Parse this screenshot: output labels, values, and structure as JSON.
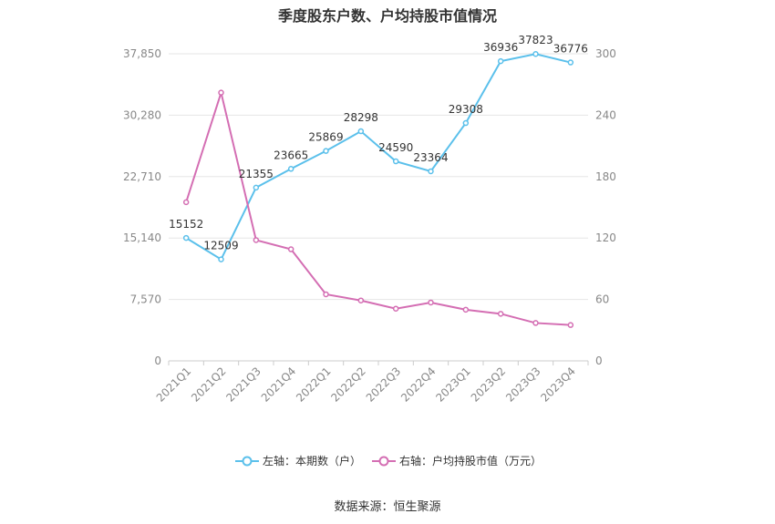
{
  "chart_data": {
    "type": "line",
    "title": "季度股东户数、户均持股市值情况",
    "categories": [
      "2021Q1",
      "2021Q2",
      "2021Q3",
      "2021Q4",
      "2022Q1",
      "2022Q2",
      "2022Q3",
      "2022Q4",
      "2023Q1",
      "2023Q2",
      "2023Q3",
      "2023Q4"
    ],
    "left_axis": {
      "ticks": [
        0,
        7570,
        15140,
        22710,
        30280,
        37850
      ],
      "tick_labels": [
        "0",
        "7,570",
        "15,140",
        "22,710",
        "30,280",
        "37,850"
      ],
      "ylim": [
        0,
        37850
      ]
    },
    "right_axis": {
      "ticks": [
        0,
        60,
        120,
        180,
        240,
        300
      ],
      "tick_labels": [
        "0",
        "60",
        "120",
        "180",
        "240",
        "300"
      ],
      "ylim": [
        0,
        300
      ]
    },
    "series": [
      {
        "name": "左轴：本期数（户）",
        "axis": "left",
        "color": "#5bc0eb",
        "values": [
          15152,
          12509,
          21355,
          23665,
          25869,
          28298,
          24590,
          23364,
          29308,
          36936,
          37823,
          36776
        ],
        "data_labels": [
          "15152",
          "12509",
          "21355",
          "23665",
          "25869",
          "28298",
          "24590",
          "23364",
          "29308",
          "36936",
          "37823",
          "36776"
        ]
      },
      {
        "name": "右轴：户均持股市值（万元）",
        "axis": "right",
        "color": "#d46eb3",
        "values": [
          155,
          262,
          118,
          109,
          65,
          59,
          51,
          57,
          50,
          46,
          37,
          35
        ]
      }
    ],
    "grid": true,
    "legend_position": "bottom"
  },
  "source_note": "数据来源：恒生聚源"
}
